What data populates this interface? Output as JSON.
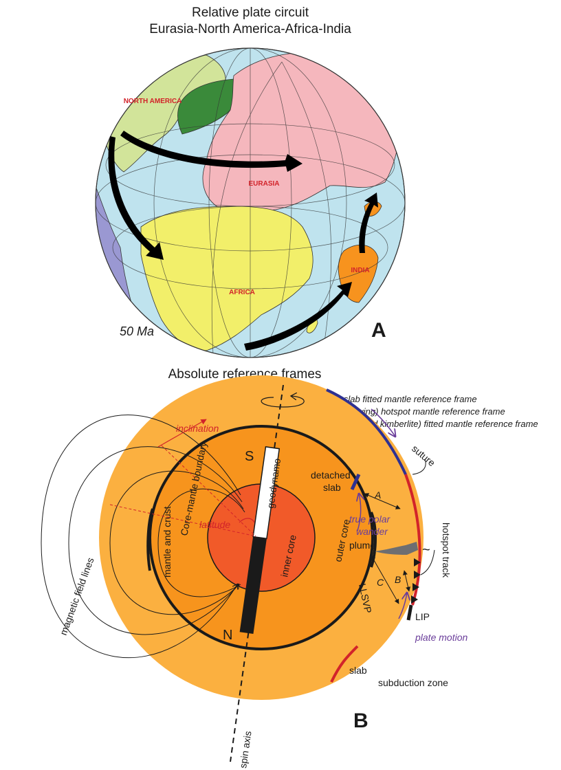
{
  "panel_a": {
    "title_line1": "Relative plate circuit",
    "title_line2": "Eurasia-North America-Africa-India",
    "plates": {
      "north_america": "NORTH AMERICA",
      "eurasia": "EURASIA",
      "africa": "AFRICA",
      "india": "INDIA"
    },
    "age": "50 Ma",
    "panel_label": "A",
    "colors": {
      "ocean": "#bfe3ee",
      "north_america": "#d2e49a",
      "greenland": "#3a8a3a",
      "eurasia": "#f5b7bd",
      "africa": "#f2ef6a",
      "india": "#f7931e",
      "south_america": "#9a98d2",
      "arrow": "#000000"
    }
  },
  "panel_b": {
    "title": "Absolute reference frames",
    "legend": {
      "a": "A: slab fitted mantle reference frame",
      "b": "B: (moving) hotspot mantle reference frame",
      "c": "C: LIP (and kimberlite) fitted mantle reference frame"
    },
    "labels": {
      "inclination": "inclination",
      "latitude": "latitude",
      "mantle_and_crust": "mantle and crust",
      "core_mantle_boundary": "Core-mantle boundary",
      "magnetic_field_lines": "magnetic field lines",
      "inner_core": "inner core",
      "outer_core": "outer core",
      "geodynamo": "geodynamo",
      "pole_s": "S",
      "pole_n": "N",
      "true_polar_wander_1": "true polar",
      "true_polar_wander_2": "wander",
      "llsvp": "LLSVP",
      "detached_slab_1": "detached",
      "detached_slab_2": "slab",
      "suture": "suture",
      "plume": "plume",
      "hotspot_track": "hotspot track",
      "lip": "LIP",
      "plate_motion": "plate motion",
      "slab": "slab",
      "subduction_zone": "subduction zone",
      "spin_axis": "spin axis",
      "frame_a": "A",
      "frame_b": "B",
      "frame_c": "C"
    },
    "panel_label": "B",
    "colors": {
      "mantle": "#fbb040",
      "outer_core": "#f7941d",
      "inner_core": "#f15a29",
      "suture": "#2e3192",
      "subduction": "#d2232a",
      "purple": "#6a3d9a",
      "red_label": "#d2232a"
    }
  }
}
